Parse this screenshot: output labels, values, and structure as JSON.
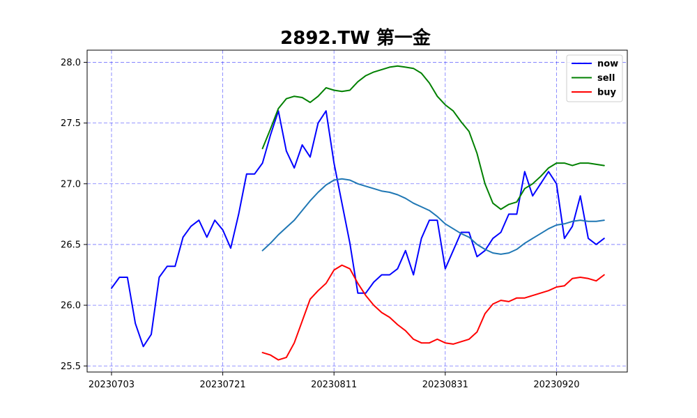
{
  "chart_data": {
    "type": "line",
    "title": "2892.TW 第一金",
    "xlabel": "",
    "ylabel": "",
    "ylim": [
      25.45,
      28.1
    ],
    "yticks": [
      25.5,
      26.0,
      26.5,
      27.0,
      27.5,
      28.0
    ],
    "ytick_labels": [
      "25.5",
      "26.0",
      "26.5",
      "27.0",
      "27.5",
      "28.0"
    ],
    "xtick_labels": [
      {
        "index": 0,
        "label": "20230703"
      },
      {
        "index": 14,
        "label": "20230721"
      },
      {
        "index": 28,
        "label": "20230811"
      },
      {
        "index": 42,
        "label": "20230831"
      },
      {
        "index": 56,
        "label": "20230920"
      }
    ],
    "x_count": 63,
    "grid": true,
    "legend_position": "top-right",
    "legend": [
      "now",
      "sell",
      "buy"
    ],
    "series": [
      {
        "name": "now",
        "color": "#0000ff",
        "start_index": 0,
        "values": [
          26.14,
          26.23,
          26.23,
          25.85,
          25.66,
          25.76,
          26.23,
          26.32,
          26.32,
          26.56,
          26.65,
          26.7,
          26.56,
          26.7,
          26.62,
          26.47,
          26.75,
          27.08,
          27.08,
          27.17,
          27.4,
          27.6,
          27.27,
          27.13,
          27.32,
          27.22,
          27.5,
          27.6,
          27.17,
          26.84,
          26.51,
          26.1,
          26.1,
          26.19,
          26.25,
          26.25,
          26.3,
          26.45,
          26.25,
          26.55,
          26.7,
          26.7,
          26.3,
          26.45,
          26.6,
          26.6,
          26.4,
          26.45,
          26.55,
          26.6,
          26.75,
          26.75,
          27.1,
          26.9,
          27.0,
          27.1,
          27.0,
          26.55,
          26.65,
          26.9,
          26.55,
          26.5,
          26.55
        ]
      },
      {
        "name": "sell",
        "color": "#008000",
        "start_index": 19,
        "values": [
          27.29,
          27.45,
          27.62,
          27.7,
          27.72,
          27.71,
          27.67,
          27.72,
          27.79,
          27.77,
          27.76,
          27.77,
          27.84,
          27.89,
          27.92,
          27.94,
          27.96,
          27.97,
          27.96,
          27.95,
          27.91,
          27.83,
          27.72,
          27.65,
          27.6,
          27.51,
          27.43,
          27.25,
          27.0,
          26.84,
          26.79,
          26.83,
          26.85,
          26.96,
          27.0,
          27.06,
          27.13,
          27.17,
          27.17,
          27.15,
          27.17,
          27.17,
          27.16,
          27.15
        ]
      },
      {
        "name": "buy",
        "color": "#ff0000",
        "start_index": 19,
        "values": [
          25.61,
          25.59,
          25.55,
          25.57,
          25.69,
          25.87,
          26.05,
          26.12,
          26.18,
          26.29,
          26.33,
          26.3,
          26.18,
          26.08,
          26.0,
          25.94,
          25.9,
          25.84,
          25.79,
          25.72,
          25.69,
          25.69,
          25.72,
          25.69,
          25.68,
          25.7,
          25.72,
          25.78,
          25.93,
          26.01,
          26.04,
          26.03,
          26.06,
          26.06,
          26.08,
          26.1,
          26.12,
          26.15,
          26.16,
          26.22,
          26.23,
          26.22,
          26.2,
          26.25
        ]
      },
      {
        "color": "#1f77b4",
        "start_index": 19,
        "values": [
          26.45,
          26.51,
          26.58,
          26.64,
          26.7,
          26.78,
          26.86,
          26.93,
          26.99,
          27.03,
          27.04,
          27.03,
          27.0,
          26.98,
          26.96,
          26.94,
          26.93,
          26.91,
          26.88,
          26.84,
          26.81,
          26.78,
          26.73,
          26.67,
          26.63,
          26.59,
          26.56,
          26.5,
          26.46,
          26.43,
          26.42,
          26.43,
          26.46,
          26.51,
          26.55,
          26.59,
          26.63,
          26.66,
          26.67,
          26.69,
          26.7,
          26.69,
          26.69,
          26.7
        ]
      }
    ]
  }
}
